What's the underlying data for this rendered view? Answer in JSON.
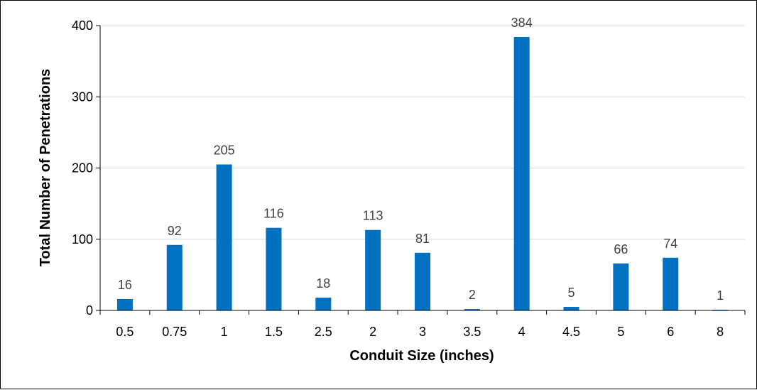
{
  "chart_data": {
    "type": "bar",
    "title": "",
    "xlabel": "Conduit Size (inches)",
    "ylabel": "Total Number of Penetrations",
    "categories": [
      "0.5",
      "0.75",
      "1",
      "1.5",
      "2.5",
      "2",
      "3",
      "3.5",
      "4",
      "4.5",
      "5",
      "6",
      "8"
    ],
    "values": [
      16,
      92,
      205,
      116,
      18,
      113,
      81,
      2,
      384,
      5,
      66,
      74,
      1
    ],
    "ylim": [
      0,
      400
    ],
    "yticks": [
      "0",
      "100",
      "200",
      "300",
      "400"
    ],
    "grid": true,
    "legend": "none",
    "bar_color": "#0070C0",
    "grid_color": "#D9D9D9",
    "data_label_color": "#404040"
  }
}
